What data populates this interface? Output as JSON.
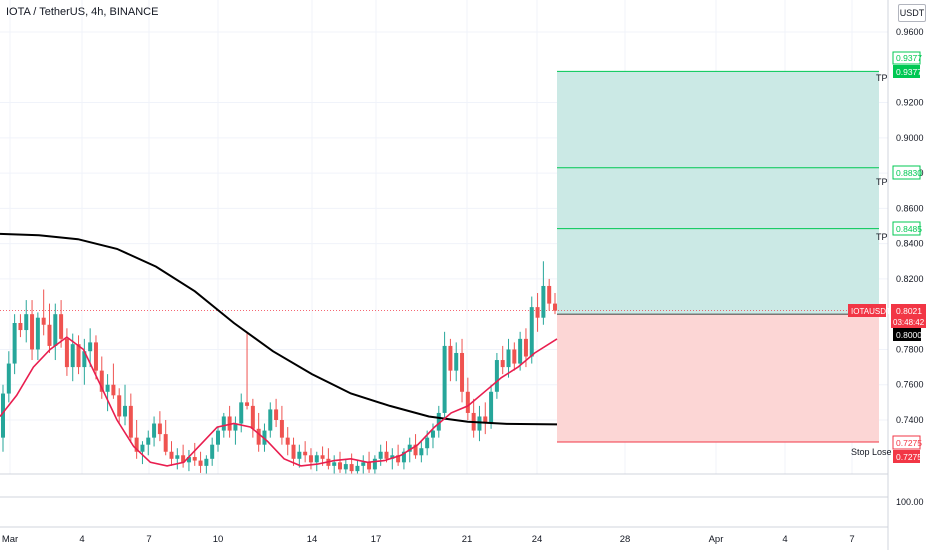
{
  "header": {
    "title": "IOTA / TetherUS, 4h, BINANCE",
    "currency_button": "USDT"
  },
  "colors": {
    "up": "#26a69a",
    "down": "#ef5350",
    "ma_long": "#000000",
    "ma_short": "#e91e4f",
    "tp_line": "#00c853",
    "tp_zone": "#cbe9e5",
    "sl_zone": "#fcd6d5",
    "sl_line": "#f23645",
    "current_price": "#f23645"
  },
  "chart_data": {
    "type": "candlestick",
    "symbol": "IOTAUSDT",
    "ylim": [
      0.7175,
      0.97
    ],
    "y_ticks": [
      "0.9600",
      "0.9200",
      "0.9000",
      "0.8800",
      "0.8600",
      "0.8400",
      "0.8200",
      "0.7800",
      "0.7600",
      "0.7400"
    ],
    "x_ticks": [
      "Mar",
      "4",
      "7",
      "10",
      "14",
      "17",
      "21",
      "24",
      "28",
      "Apr",
      "4",
      "7"
    ],
    "secondary_pane": {
      "tick": "100.00"
    },
    "price_labels": {
      "tp3": "0.9377",
      "tp3_box": "0.9377",
      "tp2": "0.8830",
      "tp1": "0.8485",
      "symbol_tag": "IOTAUSDT",
      "current_price": "0.8021",
      "countdown": "03:48:42",
      "entry": "0.8000",
      "stop": "0.7275",
      "stop_box": "0.7275"
    },
    "levels": {
      "tp3": 0.9377,
      "tp2": 0.883,
      "tp1": 0.8485,
      "current": 0.8021,
      "entry": 0.8,
      "stop": 0.7275
    },
    "zone_labels": {
      "tp": "TP",
      "stop": "Stop Lose"
    },
    "candles": [
      [
        0.73,
        0.76,
        0.722,
        0.755
      ],
      [
        0.755,
        0.779,
        0.75,
        0.772
      ],
      [
        0.772,
        0.8,
        0.766,
        0.795
      ],
      [
        0.795,
        0.8,
        0.787,
        0.791
      ],
      [
        0.791,
        0.808,
        0.784,
        0.8
      ],
      [
        0.8,
        0.808,
        0.774,
        0.78
      ],
      [
        0.78,
        0.801,
        0.774,
        0.798
      ],
      [
        0.798,
        0.814,
        0.788,
        0.794
      ],
      [
        0.794,
        0.806,
        0.778,
        0.782
      ],
      [
        0.782,
        0.806,
        0.774,
        0.8
      ],
      [
        0.8,
        0.808,
        0.781,
        0.786
      ],
      [
        0.786,
        0.792,
        0.765,
        0.77
      ],
      [
        0.77,
        0.789,
        0.762,
        0.783
      ],
      [
        0.783,
        0.788,
        0.766,
        0.77
      ],
      [
        0.77,
        0.786,
        0.76,
        0.779
      ],
      [
        0.779,
        0.792,
        0.77,
        0.784
      ],
      [
        0.784,
        0.788,
        0.763,
        0.768
      ],
      [
        0.768,
        0.776,
        0.752,
        0.756
      ],
      [
        0.756,
        0.766,
        0.745,
        0.76
      ],
      [
        0.76,
        0.772,
        0.752,
        0.754
      ],
      [
        0.754,
        0.758,
        0.738,
        0.742
      ],
      [
        0.742,
        0.76,
        0.737,
        0.748
      ],
      [
        0.748,
        0.755,
        0.727,
        0.73
      ],
      [
        0.73,
        0.74,
        0.718,
        0.722
      ],
      [
        0.722,
        0.728,
        0.715,
        0.726
      ],
      [
        0.726,
        0.734,
        0.72,
        0.73
      ],
      [
        0.73,
        0.742,
        0.725,
        0.738
      ],
      [
        0.738,
        0.745,
        0.728,
        0.732
      ],
      [
        0.732,
        0.74,
        0.72,
        0.722
      ],
      [
        0.722,
        0.728,
        0.714,
        0.718
      ],
      [
        0.718,
        0.724,
        0.712,
        0.72
      ],
      [
        0.72,
        0.726,
        0.713,
        0.716
      ],
      [
        0.716,
        0.723,
        0.711,
        0.719
      ],
      [
        0.719,
        0.727,
        0.714,
        0.717
      ],
      [
        0.717,
        0.722,
        0.71,
        0.714
      ],
      [
        0.714,
        0.72,
        0.708,
        0.718
      ],
      [
        0.718,
        0.73,
        0.714,
        0.726
      ],
      [
        0.726,
        0.736,
        0.722,
        0.734
      ],
      [
        0.734,
        0.744,
        0.73,
        0.742
      ],
      [
        0.742,
        0.748,
        0.73,
        0.734
      ],
      [
        0.734,
        0.742,
        0.726,
        0.738
      ],
      [
        0.738,
        0.755,
        0.733,
        0.75
      ],
      [
        0.75,
        0.79,
        0.746,
        0.748
      ],
      [
        0.748,
        0.752,
        0.73,
        0.735
      ],
      [
        0.735,
        0.744,
        0.722,
        0.726
      ],
      [
        0.726,
        0.738,
        0.722,
        0.734
      ],
      [
        0.734,
        0.75,
        0.73,
        0.746
      ],
      [
        0.746,
        0.752,
        0.736,
        0.74
      ],
      [
        0.74,
        0.748,
        0.726,
        0.73
      ],
      [
        0.73,
        0.736,
        0.72,
        0.726
      ],
      [
        0.726,
        0.73,
        0.714,
        0.718
      ],
      [
        0.718,
        0.726,
        0.713,
        0.722
      ],
      [
        0.722,
        0.728,
        0.716,
        0.72
      ],
      [
        0.72,
        0.724,
        0.712,
        0.716
      ],
      [
        0.716,
        0.722,
        0.711,
        0.72
      ],
      [
        0.72,
        0.725,
        0.714,
        0.718
      ],
      [
        0.718,
        0.724,
        0.712,
        0.714
      ],
      [
        0.714,
        0.72,
        0.708,
        0.716
      ],
      [
        0.716,
        0.722,
        0.71,
        0.712
      ],
      [
        0.712,
        0.718,
        0.707,
        0.715
      ],
      [
        0.715,
        0.721,
        0.709,
        0.711
      ],
      [
        0.711,
        0.717,
        0.706,
        0.714
      ],
      [
        0.714,
        0.72,
        0.708,
        0.716
      ],
      [
        0.716,
        0.722,
        0.71,
        0.712
      ],
      [
        0.712,
        0.72,
        0.708,
        0.718
      ],
      [
        0.718,
        0.726,
        0.714,
        0.722
      ],
      [
        0.722,
        0.728,
        0.716,
        0.718
      ],
      [
        0.718,
        0.724,
        0.712,
        0.72
      ],
      [
        0.72,
        0.726,
        0.714,
        0.716
      ],
      [
        0.716,
        0.724,
        0.712,
        0.722
      ],
      [
        0.722,
        0.73,
        0.716,
        0.726
      ],
      [
        0.726,
        0.732,
        0.718,
        0.72
      ],
      [
        0.72,
        0.728,
        0.716,
        0.724
      ],
      [
        0.724,
        0.734,
        0.72,
        0.73
      ],
      [
        0.73,
        0.738,
        0.724,
        0.734
      ],
      [
        0.734,
        0.748,
        0.73,
        0.744
      ],
      [
        0.744,
        0.79,
        0.74,
        0.782
      ],
      [
        0.782,
        0.786,
        0.762,
        0.768
      ],
      [
        0.768,
        0.784,
        0.762,
        0.778
      ],
      [
        0.778,
        0.786,
        0.75,
        0.756
      ],
      [
        0.756,
        0.764,
        0.74,
        0.744
      ],
      [
        0.744,
        0.752,
        0.73,
        0.734
      ],
      [
        0.734,
        0.748,
        0.728,
        0.742
      ],
      [
        0.742,
        0.75,
        0.732,
        0.738
      ],
      [
        0.738,
        0.76,
        0.735,
        0.756
      ],
      [
        0.756,
        0.778,
        0.752,
        0.774
      ],
      [
        0.774,
        0.782,
        0.766,
        0.77
      ],
      [
        0.77,
        0.786,
        0.764,
        0.78
      ],
      [
        0.78,
        0.784,
        0.768,
        0.772
      ],
      [
        0.772,
        0.79,
        0.768,
        0.786
      ],
      [
        0.786,
        0.792,
        0.77,
        0.776
      ],
      [
        0.776,
        0.81,
        0.772,
        0.804
      ],
      [
        0.804,
        0.812,
        0.79,
        0.798
      ],
      [
        0.798,
        0.83,
        0.794,
        0.816
      ],
      [
        0.816,
        0.82,
        0.802,
        0.806
      ],
      [
        0.806,
        0.812,
        0.8,
        0.802
      ]
    ],
    "ma_long": [
      [
        0,
        0.8455
      ],
      [
        0.07,
        0.8448
      ],
      [
        0.14,
        0.8425
      ],
      [
        0.21,
        0.837
      ],
      [
        0.28,
        0.827
      ],
      [
        0.35,
        0.813
      ],
      [
        0.42,
        0.795
      ],
      [
        0.49,
        0.779
      ],
      [
        0.56,
        0.766
      ],
      [
        0.63,
        0.755
      ],
      [
        0.7,
        0.748
      ],
      [
        0.77,
        0.742
      ],
      [
        0.84,
        0.739
      ],
      [
        0.91,
        0.7378
      ],
      [
        1.0,
        0.7375
      ]
    ],
    "ma_short": [
      [
        0,
        0.742
      ],
      [
        0.03,
        0.754
      ],
      [
        0.06,
        0.77
      ],
      [
        0.09,
        0.78
      ],
      [
        0.12,
        0.787
      ],
      [
        0.15,
        0.78
      ],
      [
        0.18,
        0.76
      ],
      [
        0.21,
        0.74
      ],
      [
        0.24,
        0.725
      ],
      [
        0.27,
        0.716
      ],
      [
        0.3,
        0.714
      ],
      [
        0.33,
        0.716
      ],
      [
        0.36,
        0.726
      ],
      [
        0.39,
        0.736
      ],
      [
        0.42,
        0.738
      ],
      [
        0.45,
        0.736
      ],
      [
        0.48,
        0.728
      ],
      [
        0.51,
        0.718
      ],
      [
        0.54,
        0.714
      ],
      [
        0.57,
        0.715
      ],
      [
        0.6,
        0.717
      ],
      [
        0.63,
        0.718
      ],
      [
        0.66,
        0.716
      ],
      [
        0.69,
        0.717
      ],
      [
        0.72,
        0.72
      ],
      [
        0.75,
        0.726
      ],
      [
        0.78,
        0.736
      ],
      [
        0.81,
        0.744
      ],
      [
        0.84,
        0.748
      ],
      [
        0.87,
        0.756
      ],
      [
        0.9,
        0.764
      ],
      [
        0.93,
        0.77
      ],
      [
        0.96,
        0.778
      ],
      [
        1.0,
        0.786
      ]
    ]
  }
}
